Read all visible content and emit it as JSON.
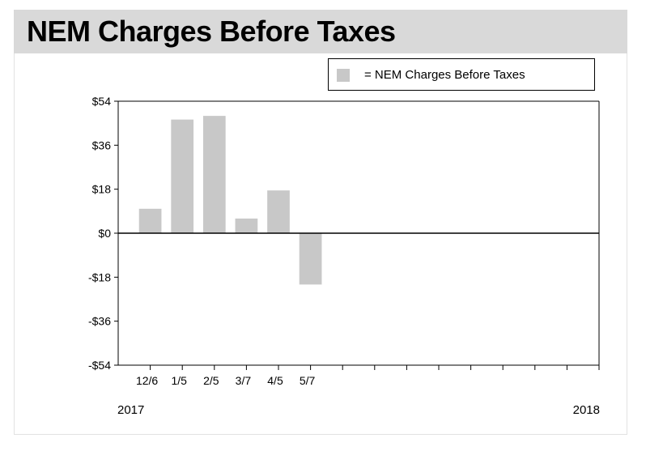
{
  "title": "NEM Charges Before Taxes",
  "legend": {
    "label": "= NEM Charges Before Taxes",
    "swatch_color": "#c8c8c8"
  },
  "colors": {
    "bar": "#c8c8c8",
    "title_band": "#d9d9d9",
    "axis": "#000000"
  },
  "chart_data": {
    "type": "bar",
    "title": "NEM Charges Before Taxes",
    "xlabel": "",
    "ylabel": "",
    "ylim": [
      -54,
      54
    ],
    "yticks": [
      54,
      36,
      18,
      0,
      -18,
      -36,
      -54
    ],
    "ytick_labels": [
      "$54",
      "$36",
      "$18",
      "$0",
      "-$18",
      "-$36",
      "-$54"
    ],
    "slots": 15,
    "categories": [
      "12/6",
      "1/5",
      "2/5",
      "3/7",
      "4/5",
      "5/7"
    ],
    "series": [
      {
        "name": "NEM Charges Before Taxes",
        "values": [
          10,
          46.5,
          48,
          6,
          17.5,
          -21
        ]
      }
    ],
    "year_labels": {
      "start": "2017",
      "end": "2018"
    },
    "grid": false,
    "legend_position": "top-right"
  }
}
